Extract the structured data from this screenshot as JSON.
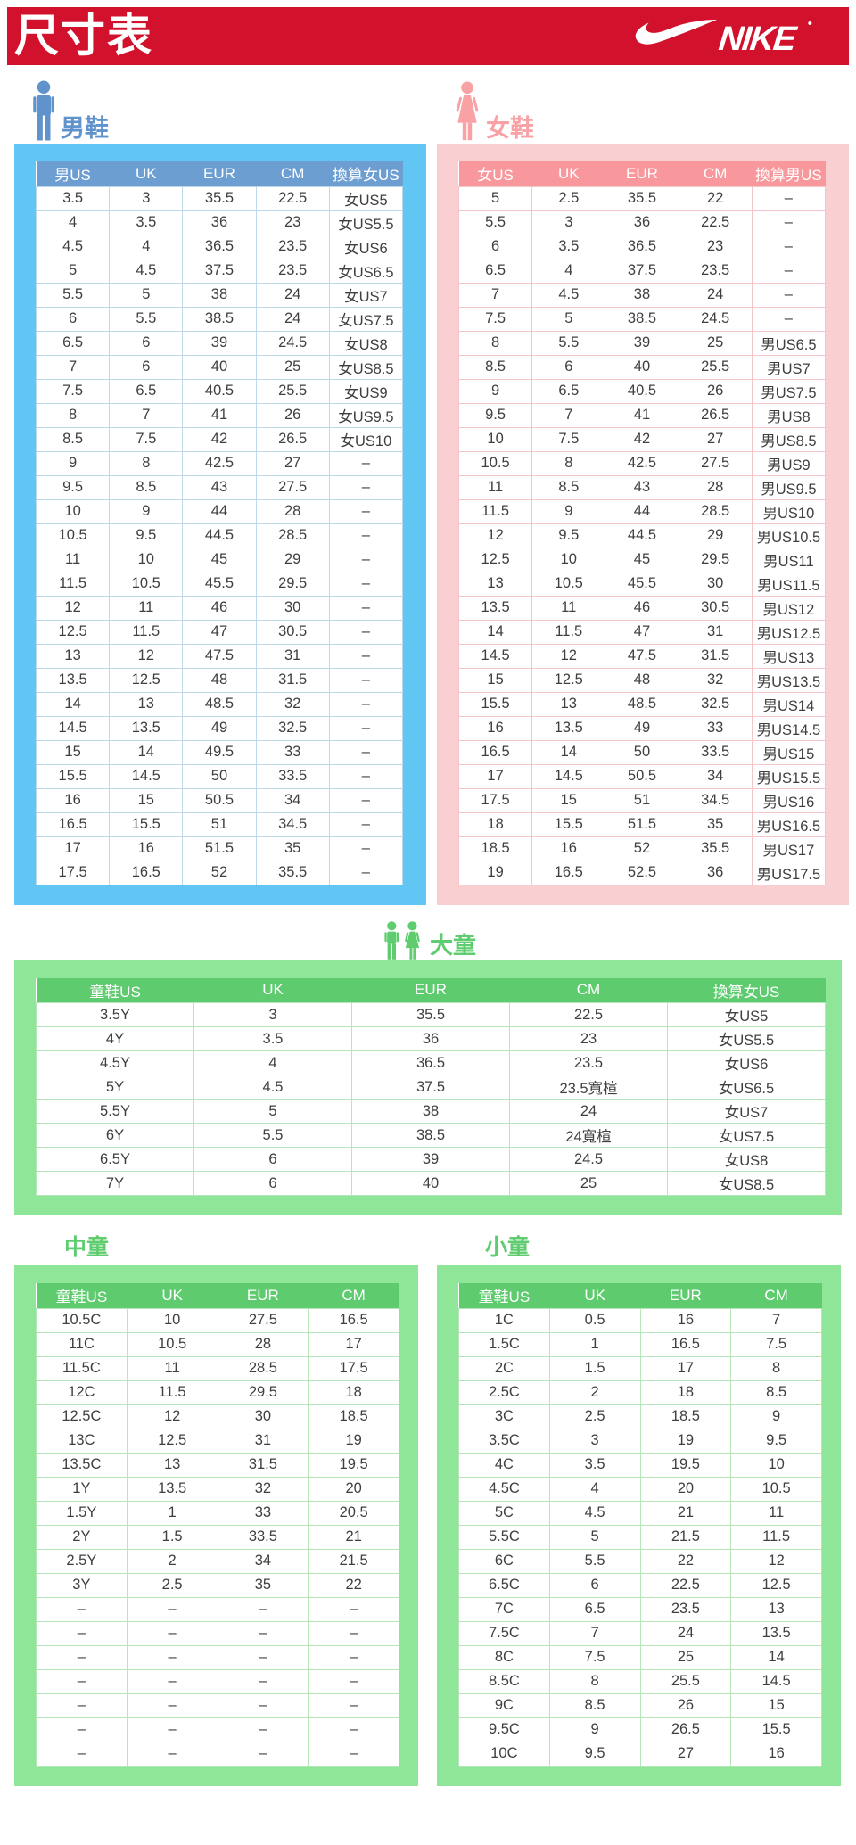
{
  "page": {
    "title": "尺寸表",
    "brand": "NIKE"
  },
  "colors": {
    "banner_red": "#d2122d",
    "men_blue_bg": "#62c6f5",
    "men_header": "#6d9ed2",
    "men_accent": "#6093cc",
    "women_pink_bg": "#f9cfd2",
    "women_header": "#f8989c",
    "women_accent": "#f9a2a6",
    "kids_green_bg": "#90e698",
    "kids_header": "#5dcb6e",
    "kids_accent": "#60cc70"
  },
  "sections": {
    "men": {
      "label": "男鞋",
      "table": {
        "columns": [
          "男US",
          "UK",
          "EUR",
          "CM",
          "換算女US"
        ],
        "rows": [
          [
            "3.5",
            "3",
            "35.5",
            "22.5",
            "女US5"
          ],
          [
            "4",
            "3.5",
            "36",
            "23",
            "女US5.5"
          ],
          [
            "4.5",
            "4",
            "36.5",
            "23.5",
            "女US6"
          ],
          [
            "5",
            "4.5",
            "37.5",
            "23.5",
            "女US6.5"
          ],
          [
            "5.5",
            "5",
            "38",
            "24",
            "女US7"
          ],
          [
            "6",
            "5.5",
            "38.5",
            "24",
            "女US7.5"
          ],
          [
            "6.5",
            "6",
            "39",
            "24.5",
            "女US8"
          ],
          [
            "7",
            "6",
            "40",
            "25",
            "女US8.5"
          ],
          [
            "7.5",
            "6.5",
            "40.5",
            "25.5",
            "女US9"
          ],
          [
            "8",
            "7",
            "41",
            "26",
            "女US9.5"
          ],
          [
            "8.5",
            "7.5",
            "42",
            "26.5",
            "女US10"
          ],
          [
            "9",
            "8",
            "42.5",
            "27",
            "–"
          ],
          [
            "9.5",
            "8.5",
            "43",
            "27.5",
            "–"
          ],
          [
            "10",
            "9",
            "44",
            "28",
            "–"
          ],
          [
            "10.5",
            "9.5",
            "44.5",
            "28.5",
            "–"
          ],
          [
            "11",
            "10",
            "45",
            "29",
            "–"
          ],
          [
            "11.5",
            "10.5",
            "45.5",
            "29.5",
            "–"
          ],
          [
            "12",
            "11",
            "46",
            "30",
            "–"
          ],
          [
            "12.5",
            "11.5",
            "47",
            "30.5",
            "–"
          ],
          [
            "13",
            "12",
            "47.5",
            "31",
            "–"
          ],
          [
            "13.5",
            "12.5",
            "48",
            "31.5",
            "–"
          ],
          [
            "14",
            "13",
            "48.5",
            "32",
            "–"
          ],
          [
            "14.5",
            "13.5",
            "49",
            "32.5",
            "–"
          ],
          [
            "15",
            "14",
            "49.5",
            "33",
            "–"
          ],
          [
            "15.5",
            "14.5",
            "50",
            "33.5",
            "–"
          ],
          [
            "16",
            "15",
            "50.5",
            "34",
            "–"
          ],
          [
            "16.5",
            "15.5",
            "51",
            "34.5",
            "–"
          ],
          [
            "17",
            "16",
            "51.5",
            "35",
            "–"
          ],
          [
            "17.5",
            "16.5",
            "52",
            "35.5",
            "–"
          ]
        ]
      }
    },
    "women": {
      "label": "女鞋",
      "table": {
        "columns": [
          "女US",
          "UK",
          "EUR",
          "CM",
          "換算男US"
        ],
        "rows": [
          [
            "5",
            "2.5",
            "35.5",
            "22",
            "–"
          ],
          [
            "5.5",
            "3",
            "36",
            "22.5",
            "–"
          ],
          [
            "6",
            "3.5",
            "36.5",
            "23",
            "–"
          ],
          [
            "6.5",
            "4",
            "37.5",
            "23.5",
            "–"
          ],
          [
            "7",
            "4.5",
            "38",
            "24",
            "–"
          ],
          [
            "7.5",
            "5",
            "38.5",
            "24.5",
            "–"
          ],
          [
            "8",
            "5.5",
            "39",
            "25",
            "男US6.5"
          ],
          [
            "8.5",
            "6",
            "40",
            "25.5",
            "男US7"
          ],
          [
            "9",
            "6.5",
            "40.5",
            "26",
            "男US7.5"
          ],
          [
            "9.5",
            "7",
            "41",
            "26.5",
            "男US8"
          ],
          [
            "10",
            "7.5",
            "42",
            "27",
            "男US8.5"
          ],
          [
            "10.5",
            "8",
            "42.5",
            "27.5",
            "男US9"
          ],
          [
            "11",
            "8.5",
            "43",
            "28",
            "男US9.5"
          ],
          [
            "11.5",
            "9",
            "44",
            "28.5",
            "男US10"
          ],
          [
            "12",
            "9.5",
            "44.5",
            "29",
            "男US10.5"
          ],
          [
            "12.5",
            "10",
            "45",
            "29.5",
            "男US11"
          ],
          [
            "13",
            "10.5",
            "45.5",
            "30",
            "男US11.5"
          ],
          [
            "13.5",
            "11",
            "46",
            "30.5",
            "男US12"
          ],
          [
            "14",
            "11.5",
            "47",
            "31",
            "男US12.5"
          ],
          [
            "14.5",
            "12",
            "47.5",
            "31.5",
            "男US13"
          ],
          [
            "15",
            "12.5",
            "48",
            "32",
            "男US13.5"
          ],
          [
            "15.5",
            "13",
            "48.5",
            "32.5",
            "男US14"
          ],
          [
            "16",
            "13.5",
            "49",
            "33",
            "男US14.5"
          ],
          [
            "16.5",
            "14",
            "50",
            "33.5",
            "男US15"
          ],
          [
            "17",
            "14.5",
            "50.5",
            "34",
            "男US15.5"
          ],
          [
            "17.5",
            "15",
            "51",
            "34.5",
            "男US16"
          ],
          [
            "18",
            "15.5",
            "51.5",
            "35",
            "男US16.5"
          ],
          [
            "18.5",
            "16",
            "52",
            "35.5",
            "男US17"
          ],
          [
            "19",
            "16.5",
            "52.5",
            "36",
            "男US17.5"
          ]
        ]
      }
    },
    "big_kids": {
      "label": "大童",
      "table": {
        "columns": [
          "童鞋US",
          "UK",
          "EUR",
          "CM",
          "換算女US"
        ],
        "rows": [
          [
            "3.5Y",
            "3",
            "35.5",
            "22.5",
            "女US5"
          ],
          [
            "4Y",
            "3.5",
            "36",
            "23",
            "女US5.5"
          ],
          [
            "4.5Y",
            "4",
            "36.5",
            "23.5",
            "女US6"
          ],
          [
            "5Y",
            "4.5",
            "37.5",
            "23.5寬楦",
            "女US6.5"
          ],
          [
            "5.5Y",
            "5",
            "38",
            "24",
            "女US7"
          ],
          [
            "6Y",
            "5.5",
            "38.5",
            "24寬楦",
            "女US7.5"
          ],
          [
            "6.5Y",
            "6",
            "39",
            "24.5",
            "女US8"
          ],
          [
            "7Y",
            "6",
            "40",
            "25",
            "女US8.5"
          ]
        ]
      }
    },
    "mid_kids": {
      "label": "中童",
      "table": {
        "columns": [
          "童鞋US",
          "UK",
          "EUR",
          "CM"
        ],
        "rows": [
          [
            "10.5C",
            "10",
            "27.5",
            "16.5"
          ],
          [
            "11C",
            "10.5",
            "28",
            "17"
          ],
          [
            "11.5C",
            "11",
            "28.5",
            "17.5"
          ],
          [
            "12C",
            "11.5",
            "29.5",
            "18"
          ],
          [
            "12.5C",
            "12",
            "30",
            "18.5"
          ],
          [
            "13C",
            "12.5",
            "31",
            "19"
          ],
          [
            "13.5C",
            "13",
            "31.5",
            "19.5"
          ],
          [
            "1Y",
            "13.5",
            "32",
            "20"
          ],
          [
            "1.5Y",
            "1",
            "33",
            "20.5"
          ],
          [
            "2Y",
            "1.5",
            "33.5",
            "21"
          ],
          [
            "2.5Y",
            "2",
            "34",
            "21.5"
          ],
          [
            "3Y",
            "2.5",
            "35",
            "22"
          ],
          [
            "–",
            "–",
            "–",
            "–"
          ],
          [
            "–",
            "–",
            "–",
            "–"
          ],
          [
            "–",
            "–",
            "–",
            "–"
          ],
          [
            "–",
            "–",
            "–",
            "–"
          ],
          [
            "–",
            "–",
            "–",
            "–"
          ],
          [
            "–",
            "–",
            "–",
            "–"
          ],
          [
            "–",
            "–",
            "–",
            "–"
          ]
        ]
      }
    },
    "small_kids": {
      "label": "小童",
      "table": {
        "columns": [
          "童鞋US",
          "UK",
          "EUR",
          "CM"
        ],
        "rows": [
          [
            "1C",
            "0.5",
            "16",
            "7"
          ],
          [
            "1.5C",
            "1",
            "16.5",
            "7.5"
          ],
          [
            "2C",
            "1.5",
            "17",
            "8"
          ],
          [
            "2.5C",
            "2",
            "18",
            "8.5"
          ],
          [
            "3C",
            "2.5",
            "18.5",
            "9"
          ],
          [
            "3.5C",
            "3",
            "19",
            "9.5"
          ],
          [
            "4C",
            "3.5",
            "19.5",
            "10"
          ],
          [
            "4.5C",
            "4",
            "20",
            "10.5"
          ],
          [
            "5C",
            "4.5",
            "21",
            "11"
          ],
          [
            "5.5C",
            "5",
            "21.5",
            "11.5"
          ],
          [
            "6C",
            "5.5",
            "22",
            "12"
          ],
          [
            "6.5C",
            "6",
            "22.5",
            "12.5"
          ],
          [
            "7C",
            "6.5",
            "23.5",
            "13"
          ],
          [
            "7.5C",
            "7",
            "24",
            "13.5"
          ],
          [
            "8C",
            "7.5",
            "25",
            "14"
          ],
          [
            "8.5C",
            "8",
            "25.5",
            "14.5"
          ],
          [
            "9C",
            "8.5",
            "26",
            "15"
          ],
          [
            "9.5C",
            "9",
            "26.5",
            "15.5"
          ],
          [
            "10C",
            "9.5",
            "27",
            "16"
          ]
        ]
      }
    }
  }
}
